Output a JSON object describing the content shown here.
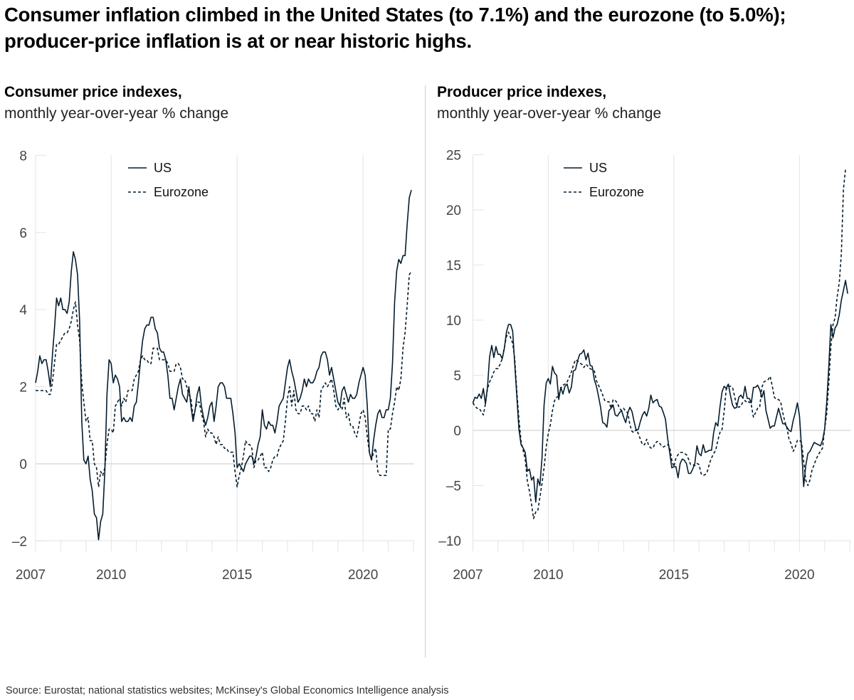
{
  "title": "Consumer inflation climbed in the United States (to 7.1%) and the eurozone (to 5.0%); producer-price inflation is at or near historic highs.",
  "source": "Source: Eurostat; national statistics websites; McKinsey's Global Economics Intelligence analysis",
  "colors": {
    "line": "#051c2c",
    "grid": "#e3e3e3",
    "zero": "#c8c8c8"
  },
  "chart_data": [
    {
      "type": "line",
      "title": "Consumer price indexes,",
      "subtitle": "monthly year-over-year % change",
      "x_start": "2007-01",
      "x_frequency": "monthly",
      "x_ticks": [
        "2007",
        "2010",
        "2015",
        "2020"
      ],
      "y_ticks": [
        "8",
        "6",
        "4",
        "2",
        "0",
        "–2"
      ],
      "y_tick_values": [
        8,
        6,
        4,
        2,
        0,
        -2
      ],
      "ylim": [
        -2,
        8
      ],
      "xlim": [
        "2007-01",
        "2022-02"
      ],
      "grid": "vertical lines at 2010, 2015, 2020; horizontal line at 0",
      "legend": "top-left",
      "series": [
        {
          "name": "US",
          "style": "solid",
          "values": [
            2.1,
            2.4,
            2.8,
            2.6,
            2.7,
            2.7,
            2.4,
            2.0,
            2.8,
            3.5,
            4.3,
            4.1,
            4.3,
            4.0,
            4.0,
            3.9,
            4.2,
            5.0,
            5.5,
            5.3,
            4.9,
            3.7,
            1.1,
            0.1,
            0.0,
            0.2,
            -0.4,
            -0.7,
            -1.3,
            -1.4,
            -1.97,
            -1.5,
            -1.3,
            -0.2,
            1.8,
            2.7,
            2.6,
            2.1,
            2.3,
            2.2,
            2.0,
            1.1,
            1.2,
            1.1,
            1.1,
            1.2,
            1.1,
            1.5,
            1.6,
            2.1,
            2.7,
            3.2,
            3.5,
            3.6,
            3.6,
            3.8,
            3.8,
            3.5,
            3.4,
            3.0,
            2.9,
            2.9,
            2.7,
            2.3,
            1.7,
            1.7,
            1.4,
            1.7,
            2.0,
            2.2,
            1.8,
            1.7,
            1.6,
            2.0,
            1.5,
            1.1,
            1.4,
            1.8,
            2.0,
            1.5,
            1.2,
            1.0,
            1.2,
            1.5,
            1.6,
            1.1,
            1.5,
            2.0,
            2.1,
            2.1,
            2.0,
            1.7,
            1.7,
            1.7,
            1.3,
            0.8,
            -0.1,
            0.0,
            -0.1,
            -0.2,
            0.0,
            0.1,
            0.2,
            0.2,
            0.0,
            0.2,
            0.5,
            0.7,
            1.4,
            1.0,
            0.9,
            1.1,
            1.0,
            1.0,
            0.8,
            1.1,
            1.5,
            1.6,
            1.7,
            2.1,
            2.5,
            2.7,
            2.4,
            2.2,
            1.9,
            1.6,
            1.7,
            1.9,
            2.2,
            2.0,
            2.2,
            2.1,
            2.1,
            2.2,
            2.4,
            2.5,
            2.8,
            2.9,
            2.9,
            2.7,
            2.3,
            2.5,
            2.2,
            1.9,
            1.6,
            1.5,
            1.9,
            2.0,
            1.8,
            1.6,
            1.8,
            1.7,
            1.7,
            1.8,
            2.1,
            2.3,
            2.5,
            2.3,
            1.5,
            0.3,
            0.1,
            0.6,
            1.0,
            1.3,
            1.4,
            1.2,
            1.2,
            1.4,
            1.4,
            1.7,
            2.6,
            4.2,
            5.0,
            5.3,
            5.2,
            5.4,
            5.4,
            6.2,
            6.9,
            7.1
          ]
        },
        {
          "name": "Eurozone",
          "style": "dashed",
          "values": [
            1.9,
            1.9,
            1.9,
            1.9,
            1.9,
            1.9,
            1.8,
            1.8,
            2.1,
            2.6,
            3.1,
            3.1,
            3.2,
            3.3,
            3.4,
            3.4,
            3.5,
            3.7,
            4.0,
            4.2,
            3.6,
            3.2,
            2.1,
            1.6,
            1.1,
            1.2,
            0.6,
            0.6,
            0.0,
            -0.1,
            -0.6,
            -0.2,
            -0.3,
            -0.1,
            0.5,
            0.9,
            0.9,
            0.8,
            1.5,
            1.6,
            1.7,
            1.5,
            1.7,
            1.6,
            1.9,
            1.9,
            1.9,
            2.2,
            2.3,
            2.4,
            2.7,
            2.8,
            2.7,
            2.7,
            2.6,
            2.6,
            3.0,
            3.0,
            3.0,
            2.7,
            2.7,
            2.7,
            2.7,
            2.6,
            2.4,
            2.4,
            2.4,
            2.6,
            2.6,
            2.5,
            2.2,
            2.2,
            2.0,
            1.8,
            1.7,
            1.2,
            1.4,
            1.6,
            1.6,
            1.3,
            1.1,
            0.7,
            0.9,
            0.8,
            0.8,
            0.7,
            0.5,
            0.7,
            0.5,
            0.5,
            0.4,
            0.4,
            0.3,
            0.3,
            0.3,
            -0.2,
            -0.6,
            -0.3,
            -0.1,
            0.2,
            0.6,
            0.5,
            0.5,
            0.4,
            -0.1,
            0.1,
            0.1,
            0.2,
            0.3,
            -0.1,
            -0.1,
            -0.2,
            -0.1,
            0.1,
            0.2,
            0.2,
            0.4,
            0.5,
            0.6,
            1.1,
            1.7,
            2.0,
            1.5,
            1.9,
            1.4,
            1.3,
            1.3,
            1.5,
            1.5,
            1.4,
            1.5,
            1.3,
            1.3,
            1.1,
            1.4,
            1.2,
            1.9,
            2.0,
            2.1,
            2.0,
            2.1,
            2.2,
            1.9,
            1.5,
            1.4,
            1.5,
            1.4,
            1.7,
            1.2,
            1.3,
            1.0,
            1.0,
            0.8,
            0.7,
            1.0,
            1.3,
            1.4,
            1.2,
            0.7,
            0.3,
            0.1,
            0.3,
            0.4,
            -0.2,
            -0.3,
            -0.3,
            -0.3,
            -0.3,
            0.9,
            0.9,
            1.3,
            1.6,
            2.0,
            1.9,
            2.2,
            3.0,
            3.4,
            4.1,
            4.9,
            5.0
          ]
        }
      ]
    },
    {
      "type": "line",
      "title": "Producer price indexes,",
      "subtitle": "monthly year-over-year % change",
      "x_start": "2007-01",
      "x_frequency": "monthly",
      "x_ticks": [
        "2007",
        "2010",
        "2015",
        "2020"
      ],
      "y_ticks": [
        "25",
        "20",
        "15",
        "10",
        "5",
        "0",
        "–5",
        "–10"
      ],
      "y_tick_values": [
        25,
        20,
        15,
        10,
        5,
        0,
        -5,
        -10
      ],
      "ylim": [
        -10,
        25
      ],
      "xlim": [
        "2007-01",
        "2022-02"
      ],
      "grid": "vertical lines at 2010, 2015, 2020; horizontal line at 0",
      "legend": "top-left",
      "series": [
        {
          "name": "US",
          "style": "solid",
          "values": [
            2.5,
            3.0,
            2.9,
            3.3,
            2.9,
            3.8,
            2.4,
            4.0,
            6.7,
            7.7,
            6.6,
            7.6,
            6.9,
            6.9,
            6.5,
            7.4,
            8.9,
            9.6,
            9.6,
            9.0,
            6.0,
            3.0,
            0.1,
            -1.3,
            -1.6,
            -2.0,
            -3.7,
            -3.5,
            -4.5,
            -4.2,
            -6.5,
            -4.4,
            -5.0,
            -2.5,
            2.3,
            4.3,
            4.7,
            4.2,
            5.8,
            5.2,
            5.0,
            2.8,
            3.9,
            3.3,
            4.0,
            4.2,
            3.4,
            3.9,
            5.4,
            5.5,
            6.3,
            6.9,
            7.0,
            7.3,
            6.4,
            7.0,
            5.9,
            5.8,
            4.6,
            4.0,
            3.1,
            2.1,
            0.7,
            0.6,
            0.3,
            1.8,
            2.0,
            2.3,
            1.4,
            1.3,
            1.6,
            1.8,
            1.2,
            0.7,
            1.6,
            2.1,
            1.7,
            0.8,
            0.0,
            0.1,
            0.8,
            1.4,
            1.7,
            1.3,
            2.0,
            3.2,
            2.5,
            2.7,
            2.8,
            2.2,
            2.1,
            1.6,
            1.0,
            -0.7,
            -2.0,
            -3.4,
            -3.3,
            -3.3,
            -4.3,
            -3.0,
            -2.6,
            -2.7,
            -3.0,
            -3.9,
            -3.9,
            -3.5,
            -3.0,
            -1.4,
            -2.1,
            -2.3,
            -1.3,
            -2.0,
            -1.9,
            -1.8,
            -1.8,
            -0.2,
            0.7,
            0.4,
            2.1,
            3.5,
            4.0,
            3.8,
            4.2,
            3.2,
            2.3,
            2.0,
            2.1,
            3.0,
            3.2,
            2.9,
            4.0,
            2.9,
            2.9,
            2.5,
            3.9,
            3.9,
            4.1,
            3.7,
            3.0,
            3.6,
            1.8,
            1.0,
            0.2,
            0.4,
            0.4,
            1.2,
            2.0,
            1.3,
            0.6,
            0.6,
            0.3,
            0.0,
            -0.1,
            0.9,
            1.6,
            2.5,
            1.3,
            -1.6,
            -5.1,
            -3.2,
            -2.1,
            -1.9,
            -1.5,
            -1.1,
            -1.2,
            -1.3,
            -1.4,
            -0.9,
            0.1,
            2.5,
            5.8,
            9.6,
            8.4,
            9.3,
            9.6,
            10.5,
            11.8,
            12.7,
            13.6,
            12.4
          ]
        },
        {
          "name": "Eurozone",
          "style": "dashed",
          "values": [
            2.5,
            2.2,
            2.0,
            2.0,
            1.7,
            1.4,
            2.4,
            3.8,
            4.4,
            4.8,
            5.3,
            5.6,
            5.6,
            6.0,
            6.5,
            7.5,
            8.5,
            8.9,
            8.4,
            7.9,
            6.5,
            3.5,
            1.0,
            -1.0,
            -1.8,
            -2.6,
            -4.6,
            -5.5,
            -6.7,
            -8.0,
            -7.4,
            -7.3,
            -6.1,
            -4.8,
            -3.4,
            -1.5,
            -0.3,
            0.5,
            1.8,
            2.7,
            3.0,
            3.1,
            3.8,
            4.1,
            4.2,
            4.4,
            4.8,
            5.3,
            5.9,
            6.4,
            6.3,
            6.1,
            6.0,
            5.7,
            6.0,
            5.8,
            5.6,
            5.5,
            5.4,
            4.5,
            4.1,
            3.7,
            3.2,
            2.7,
            2.6,
            2.6,
            2.0,
            2.8,
            2.7,
            2.5,
            2.0,
            1.8,
            2.0,
            1.7,
            1.6,
            0.5,
            -0.1,
            -0.2,
            0.1,
            -0.3,
            -0.8,
            -1.3,
            -1.3,
            -0.8,
            -1.4,
            -1.6,
            -1.6,
            -1.2,
            -1.0,
            -1.1,
            -1.4,
            -1.5,
            -1.4,
            -1.3,
            -1.5,
            -2.7,
            -3.3,
            -2.5,
            -2.2,
            -2.0,
            -2.0,
            -2.1,
            -2.2,
            -2.6,
            -3.1,
            -3.1,
            -3.2,
            -3.0,
            -3.1,
            -3.9,
            -4.1,
            -4.0,
            -3.7,
            -3.0,
            -2.5,
            -2.1,
            -1.8,
            -0.9,
            -0.2,
            0.1,
            1.7,
            3.7,
            4.0,
            4.0,
            3.9,
            3.1,
            2.2,
            2.1,
            2.2,
            2.6,
            2.7,
            2.5,
            2.6,
            2.3,
            1.2,
            1.6,
            2.0,
            2.1,
            3.9,
            4.4,
            4.5,
            4.6,
            4.9,
            4.0,
            3.0,
            2.8,
            2.8,
            2.6,
            1.6,
            0.8,
            0.2,
            -0.8,
            -1.2,
            -1.9,
            -1.5,
            -0.9,
            -0.9,
            -1.1,
            -2.8,
            -4.5,
            -5.0,
            -4.5,
            -3.6,
            -3.1,
            -2.6,
            -2.2,
            -1.9,
            -1.6,
            0.1,
            1.5,
            4.3,
            7.6,
            9.6,
            10.2,
            12.1,
            13.4,
            16.0,
            21.9,
            23.7
          ]
        }
      ]
    }
  ]
}
